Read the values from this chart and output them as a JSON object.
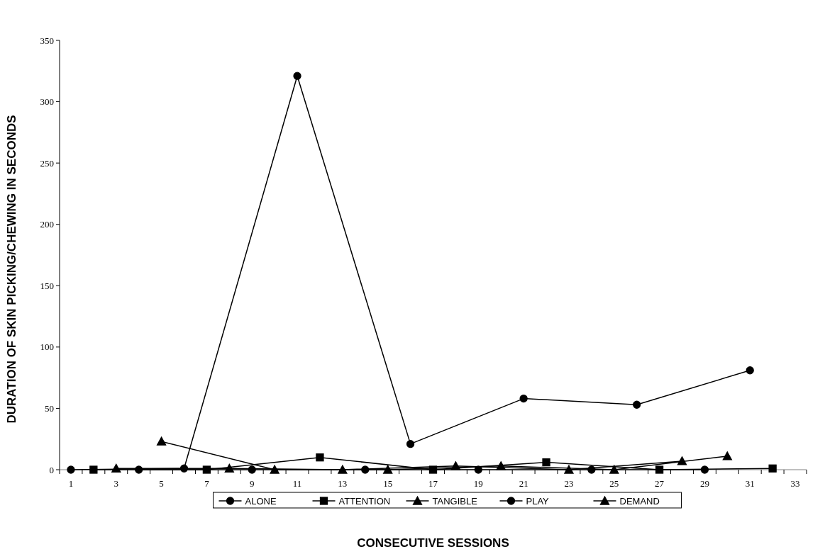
{
  "chart_data": {
    "type": "line",
    "xlabel": "CONSECUTIVE SESSIONS",
    "ylabel": "DURATION OF SKIN PICKING/CHEWING IN SECONDS",
    "xlim": [
      0.5,
      33.5
    ],
    "xticks": [
      1,
      3,
      5,
      7,
      9,
      11,
      13,
      15,
      17,
      19,
      21,
      23,
      25,
      27,
      29,
      31,
      33,
      {
        "value": 0.5,
        "label": null
      },
      {
        "value": 1.5,
        "label": null
      },
      {
        "value": 2.5,
        "label": null
      },
      {
        "value": 3.5,
        "label": null
      },
      {
        "value": 4.5,
        "label": null
      },
      {
        "value": 5.5,
        "label": null
      },
      {
        "value": 6.5,
        "label": null
      },
      {
        "value": 7.5,
        "label": null
      },
      {
        "value": 8.5,
        "label": null
      },
      {
        "value": 9.5,
        "label": null
      },
      {
        "value": 10.5,
        "label": null
      },
      {
        "value": 11.5,
        "label": null
      },
      {
        "value": 12.5,
        "label": null
      },
      {
        "value": 13.5,
        "label": null
      },
      {
        "value": 14.5,
        "label": null
      },
      {
        "value": 15.5,
        "label": null
      },
      {
        "value": 16.5,
        "label": null
      },
      {
        "value": 17.5,
        "label": null
      },
      {
        "value": 18.5,
        "label": null
      },
      {
        "value": 19.5,
        "label": null
      },
      {
        "value": 20.5,
        "label": null
      },
      {
        "value": 21.5,
        "label": null
      },
      {
        "value": 22.5,
        "label": null
      },
      {
        "value": 23.5,
        "label": null
      },
      {
        "value": 24.5,
        "label": null
      },
      {
        "value": 25.5,
        "label": null
      },
      {
        "value": 26.5,
        "label": null
      },
      {
        "value": 27.5,
        "label": null
      },
      {
        "value": 28.5,
        "label": null
      },
      {
        "value": 29.5,
        "label": null
      },
      {
        "value": 30.5,
        "label": null
      },
      {
        "value": 31.5,
        "label": null
      },
      {
        "value": 32.5,
        "label": null
      },
      {
        "value": 33.5,
        "label": null
      }
    ],
    "ylim": [
      0,
      350
    ],
    "yticks": [
      0,
      50,
      100,
      150,
      200,
      250,
      300,
      350
    ],
    "legend": "bottom",
    "line_style": "solid",
    "series": [
      {
        "name": "ALONE",
        "color": "#000000",
        "marker": "circle",
        "x": [
          1,
          6,
          11,
          16,
          21,
          26,
          31
        ],
        "values": [
          0,
          1,
          321,
          21,
          58,
          53,
          81
        ]
      },
      {
        "name": "ATTENTION",
        "color": "#000000",
        "marker": "square",
        "x": [
          2,
          7,
          12,
          17,
          22,
          27,
          32
        ],
        "values": [
          0,
          0,
          10,
          0,
          6,
          0,
          1
        ]
      },
      {
        "name": "TANGIBLE",
        "color": "#000000",
        "marker": "triangle",
        "x": [
          3,
          8,
          13,
          18,
          23,
          28
        ],
        "values": [
          1,
          1,
          0,
          3,
          0,
          7
        ]
      },
      {
        "name": "PLAY",
        "color": "#000000",
        "marker": "circle",
        "x": [
          4,
          9,
          14,
          19,
          24,
          29
        ],
        "values": [
          0,
          0,
          0,
          0,
          0,
          0
        ]
      },
      {
        "name": "DEMAND",
        "color": "#000000",
        "marker": "triangle",
        "x": [
          5,
          10,
          15,
          20,
          25,
          30
        ],
        "values": [
          23,
          0,
          0,
          3,
          0,
          11
        ]
      }
    ]
  }
}
